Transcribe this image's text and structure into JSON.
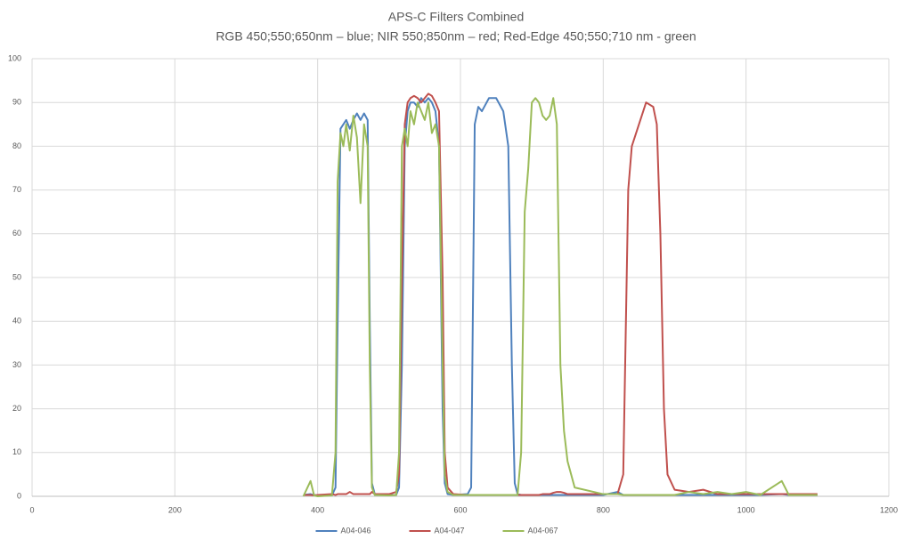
{
  "chart_data": {
    "type": "line",
    "title": "APS-C Filters Combined",
    "subtitle": "RGB 450;550;650nm – blue; NIR 550;850nm – red; Red-Edge 450;550;710 nm - green",
    "x": [
      380,
      390,
      395,
      400,
      420,
      425,
      428,
      432,
      436,
      440,
      445,
      450,
      455,
      460,
      465,
      470,
      473,
      476,
      480,
      500,
      510,
      514,
      518,
      522,
      526,
      530,
      535,
      540,
      545,
      550,
      555,
      560,
      565,
      570,
      575,
      578,
      582,
      590,
      610,
      615,
      620,
      625,
      630,
      640,
      650,
      660,
      667,
      672,
      676,
      680,
      685,
      690,
      695,
      700,
      705,
      710,
      715,
      720,
      725,
      730,
      735,
      740,
      745,
      750,
      760,
      800,
      820,
      828,
      835,
      840,
      850,
      860,
      870,
      875,
      880,
      885,
      890,
      900,
      920,
      940,
      960,
      980,
      1000,
      1020,
      1050,
      1060,
      1080,
      1100
    ],
    "series": [
      {
        "name": "A04-046",
        "color": "#4f81bd",
        "values": [
          0.3,
          0.5,
          0.3,
          0.2,
          0.2,
          2,
          40,
          84,
          85,
          86,
          84,
          86,
          87.5,
          86,
          87.5,
          86,
          40,
          3,
          0.5,
          0.3,
          0.3,
          2,
          30,
          80,
          88,
          90,
          90,
          89,
          91,
          90,
          91,
          90,
          88,
          80,
          20,
          3,
          0.5,
          0.3,
          0.5,
          2,
          85,
          89,
          88,
          91,
          91,
          88,
          80,
          30,
          3,
          0.5,
          0.3,
          0.3,
          0.3,
          0.3,
          0.3,
          0.3,
          0.3,
          0.3,
          0.3,
          0.3,
          0.3,
          0.3,
          0.3,
          0.3,
          0.3,
          0.3,
          1,
          0.3,
          0.3,
          0.3,
          0.3,
          0.3,
          0.3,
          0.3,
          0.3,
          0.3,
          0.3,
          0.3,
          0.3,
          0.3,
          0.3,
          0.3,
          0.3,
          0.3,
          0.5,
          0.3,
          0.3,
          0.3
        ]
      },
      {
        "name": "A04-047",
        "color": "#c0504d",
        "values": [
          0.3,
          0.3,
          0.2,
          0.3,
          0.5,
          0.3,
          0.5,
          0.5,
          0.5,
          0.5,
          1,
          0.5,
          0.5,
          0.5,
          0.5,
          0.5,
          0.5,
          1,
          0.5,
          0.5,
          1,
          5,
          50,
          85,
          90,
          91,
          91.5,
          91,
          90,
          91,
          92,
          91.5,
          90,
          88,
          50,
          10,
          2,
          0.5,
          0.3,
          0.3,
          0.3,
          0.3,
          0.3,
          0.3,
          0.3,
          0.3,
          0.3,
          0.3,
          0.3,
          0.3,
          0.3,
          0.3,
          0.3,
          0.3,
          0.3,
          0.3,
          0.5,
          0.5,
          0.5,
          0.8,
          1,
          1,
          0.8,
          0.5,
          0.5,
          0.5,
          0.5,
          5,
          70,
          80,
          85,
          90,
          89,
          85,
          60,
          20,
          5,
          1.5,
          1,
          1.5,
          0.5,
          0.5,
          0.5,
          0.5,
          0.5,
          0.5,
          0.5,
          0.5
        ]
      },
      {
        "name": "A04-067",
        "color": "#9bbb59",
        "values": [
          0,
          3.5,
          0.2,
          0,
          0.2,
          10,
          72,
          83,
          80,
          85,
          79,
          87,
          82,
          67,
          85,
          80,
          30,
          2,
          0.3,
          0.2,
          0.3,
          10,
          80,
          84,
          80,
          88,
          85,
          90,
          88,
          86,
          90,
          83,
          85,
          80,
          30,
          5,
          1,
          0.3,
          0.3,
          0.3,
          0.3,
          0.3,
          0.3,
          0.3,
          0.3,
          0.3,
          0.3,
          0.3,
          0.3,
          0.3,
          10,
          65,
          75,
          90,
          91,
          90,
          87,
          86,
          87,
          91,
          85,
          30,
          15,
          8,
          2,
          0.5,
          0.5,
          0.3,
          0.3,
          0.3,
          0.3,
          0.3,
          0.3,
          0.3,
          0.3,
          0.3,
          0.3,
          0.3,
          1,
          0.5,
          1,
          0.5,
          1,
          0.3,
          3.5,
          0.3,
          0.3,
          0.3
        ]
      }
    ],
    "xlim": [
      0,
      1200
    ],
    "xticks": [
      0,
      200,
      400,
      600,
      800,
      1000,
      1200
    ],
    "ylim": [
      0,
      100
    ],
    "yticks": [
      0,
      10,
      20,
      30,
      40,
      50,
      60,
      70,
      80,
      90,
      100
    ],
    "grid": true,
    "legend": "bottom"
  }
}
